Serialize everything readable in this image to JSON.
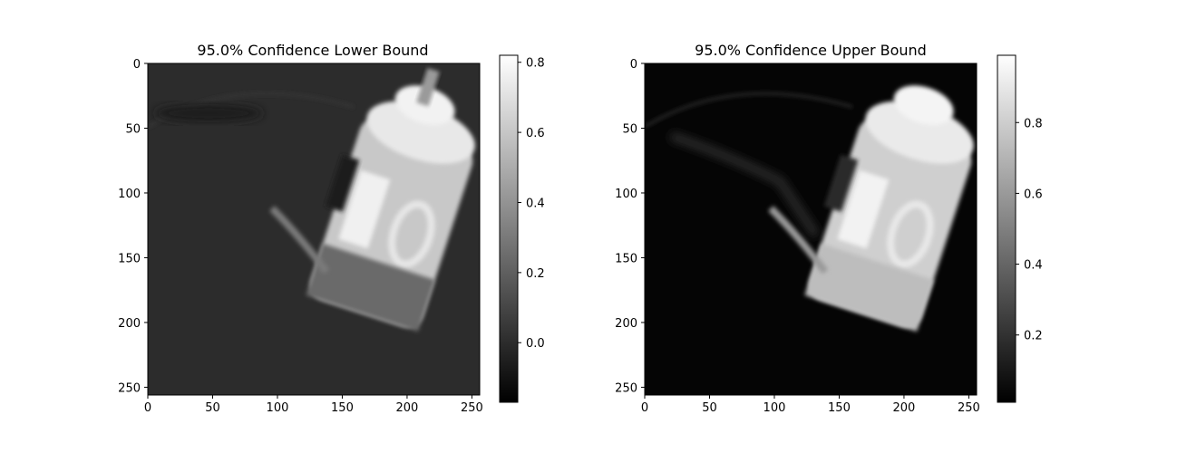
{
  "chart_data": [
    {
      "type": "heatmap",
      "title": "95.0% Confidence Lower Bound",
      "colormap": "gray",
      "image_shape": [
        256,
        256
      ],
      "x_ticks": [
        0,
        50,
        100,
        150,
        200,
        250
      ],
      "y_ticks": [
        0,
        50,
        100,
        150,
        200,
        250
      ],
      "xlim": [
        0,
        256
      ],
      "ylim": [
        256,
        0
      ],
      "colorbar": {
        "vmin": -0.17,
        "vmax": 0.82,
        "ticks": [
          0.0,
          0.2,
          0.4,
          0.6,
          0.8
        ],
        "tick_labels": [
          "0.0",
          "0.2",
          "0.4",
          "0.6",
          "0.8"
        ]
      },
      "background_value": 0.05
    },
    {
      "type": "heatmap",
      "title": "95.0% Confidence Upper Bound",
      "colormap": "gray",
      "image_shape": [
        256,
        256
      ],
      "x_ticks": [
        0,
        50,
        100,
        150,
        200,
        250
      ],
      "y_ticks": [
        0,
        50,
        100,
        150,
        200,
        250
      ],
      "xlim": [
        0,
        256
      ],
      "ylim": [
        256,
        0
      ],
      "colorbar": {
        "vmin": 0.01,
        "vmax": 0.99,
        "ticks": [
          0.2,
          0.4,
          0.6,
          0.8
        ],
        "tick_labels": [
          "0.2",
          "0.4",
          "0.6",
          "0.8"
        ]
      },
      "background_value": 0.02
    }
  ]
}
